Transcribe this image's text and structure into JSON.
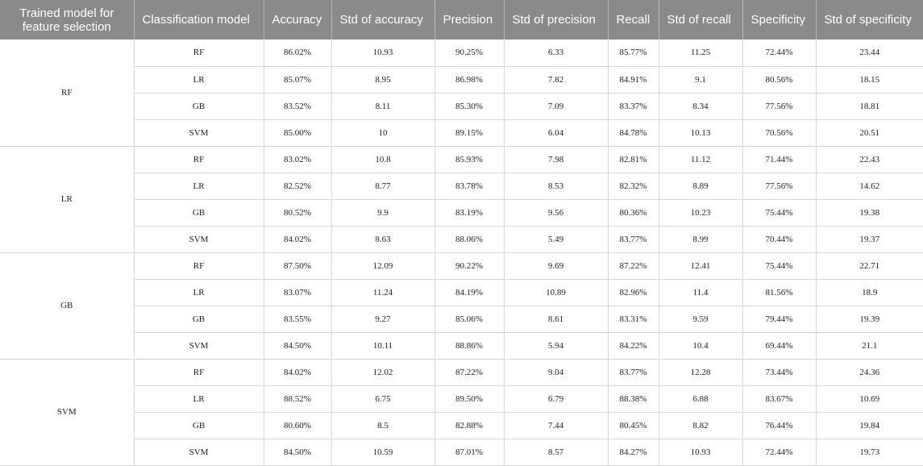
{
  "headers": [
    "Trained model for feature selection",
    "Classification model",
    "Accuracy",
    "Std of accuracy",
    "Precision",
    "Std of precision",
    "Recall",
    "Std of recall",
    "Specificity",
    "Std of specificity"
  ],
  "groups": [
    {
      "name": "RF",
      "rows": [
        [
          "RF",
          "86.02%",
          "10.93",
          "90.25%",
          "6.33",
          "85.77%",
          "11.25",
          "72.44%",
          "23.44"
        ],
        [
          "LR",
          "85.07%",
          "8.95",
          "86.98%",
          "7.82",
          "84.91%",
          "9.1",
          "80.56%",
          "18.15"
        ],
        [
          "GB",
          "83.52%",
          "8.11",
          "85.30%",
          "7.09",
          "83.37%",
          "8.34",
          "77.56%",
          "18.81"
        ],
        [
          "SVM",
          "85.00%",
          "10",
          "89.15%",
          "6.04",
          "84.78%",
          "10.13",
          "70.56%",
          "20.51"
        ]
      ]
    },
    {
      "name": "LR",
      "rows": [
        [
          "RF",
          "83.02%",
          "10.8",
          "85.93%",
          "7.98",
          "82.81%",
          "11.12",
          "71.44%",
          "22.43"
        ],
        [
          "LR",
          "82.52%",
          "8.77",
          "83.78%",
          "8.53",
          "82.32%",
          "8.89",
          "77.56%",
          "14.62"
        ],
        [
          "GB",
          "80.52%",
          "9.9",
          "83.19%",
          "9.56",
          "80.36%",
          "10.23",
          "75.44%",
          "19.38"
        ],
        [
          "SVM",
          "84.02%",
          "8.63",
          "88.06%",
          "5.49",
          "83.77%",
          "8.99",
          "70.44%",
          "19.37"
        ]
      ]
    },
    {
      "name": "GB",
      "rows": [
        [
          "RF",
          "87.50%",
          "12.09",
          "90.22%",
          "9.69",
          "87.22%",
          "12.41",
          "75.44%",
          "22.71"
        ],
        [
          "LR",
          "83.07%",
          "11.24",
          "84.19%",
          "10.89",
          "82.96%",
          "11.4",
          "81.56%",
          "18.9"
        ],
        [
          "GB",
          "83.55%",
          "9.27",
          "85.06%",
          "8.61",
          "83.31%",
          "9.59",
          "79.44%",
          "19.39"
        ],
        [
          "SVM",
          "84.50%",
          "10.11",
          "88.86%",
          "5.94",
          "84.22%",
          "10.4",
          "69.44%",
          "21.1"
        ]
      ]
    },
    {
      "name": "SVM",
      "rows": [
        [
          "RF",
          "84.02%",
          "12.02",
          "87.22%",
          "9.04",
          "83.77%",
          "12.28",
          "73.44%",
          "24.36"
        ],
        [
          "LR",
          "88.52%",
          "6.75",
          "89.50%",
          "6.79",
          "88.38%",
          "6.88",
          "83.67%",
          "10.69"
        ],
        [
          "GB",
          "80.60%",
          "8.5",
          "82.88%",
          "7.44",
          "80.45%",
          "8.82",
          "76.44%",
          "19.84"
        ],
        [
          "SVM",
          "84.50%",
          "10.59",
          "87.01%",
          "8.57",
          "84.27%",
          "10.93",
          "72.44%",
          "19.73"
        ]
      ]
    }
  ],
  "colors": {
    "header_bg": "#8a8a8a",
    "header_text": "#ffffff",
    "grid_line": "#d6d6d6"
  }
}
